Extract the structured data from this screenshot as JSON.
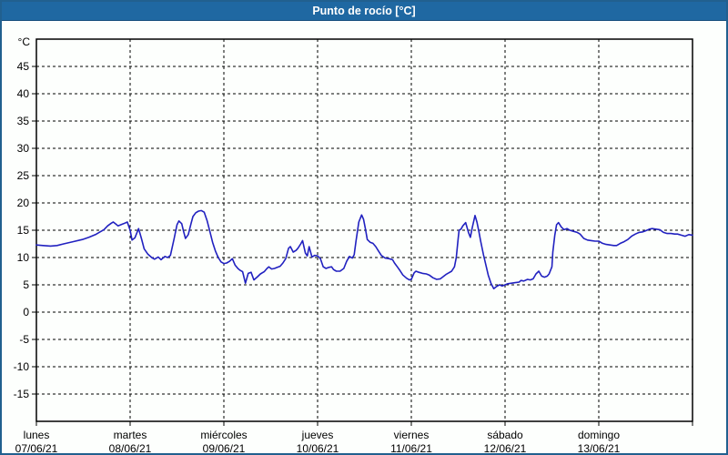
{
  "header": {
    "title": "Punto de rocío [°C]"
  },
  "colors": {
    "header_bg": "#1f68a2",
    "header_text": "#ffffff",
    "page_border": "#21608f",
    "page_bg": "#fdfffd",
    "plot_border": "#000000",
    "grid": "#000000",
    "axis_text": "#000000",
    "line": "#2121c0"
  },
  "chart_data": {
    "type": "line",
    "title": "Punto de rocío [°C]",
    "y_unit": "°C",
    "ylim": [
      -20,
      50
    ],
    "y_ticks": [
      45,
      40,
      35,
      30,
      25,
      20,
      15,
      10,
      5,
      0,
      -5,
      -10,
      -15
    ],
    "grid": "dashed",
    "legend": "none",
    "x_days": [
      {
        "name": "lunes",
        "date": "07/06/21"
      },
      {
        "name": "martes",
        "date": "08/06/21"
      },
      {
        "name": "miércoles",
        "date": "09/06/21"
      },
      {
        "name": "jueves",
        "date": "10/06/21"
      },
      {
        "name": "viernes",
        "date": "11/06/21"
      },
      {
        "name": "sábado",
        "date": "12/06/21"
      },
      {
        "name": "domingo",
        "date": "13/06/21"
      }
    ],
    "xlim_days": [
      0,
      7
    ],
    "series": [
      {
        "name": "Punto de rocío",
        "color": "#2121c0",
        "points": [
          [
            0.0,
            12.3
          ],
          [
            0.07,
            12.2
          ],
          [
            0.15,
            12.1
          ],
          [
            0.22,
            12.2
          ],
          [
            0.29,
            12.5
          ],
          [
            0.39,
            12.9
          ],
          [
            0.49,
            13.3
          ],
          [
            0.56,
            13.7
          ],
          [
            0.63,
            14.2
          ],
          [
            0.68,
            14.7
          ],
          [
            0.72,
            15.1
          ],
          [
            0.76,
            15.8
          ],
          [
            0.8,
            16.3
          ],
          [
            0.82,
            16.5
          ],
          [
            0.85,
            16.1
          ],
          [
            0.87,
            15.8
          ],
          [
            0.9,
            16.0
          ],
          [
            0.93,
            16.2
          ],
          [
            0.97,
            16.5
          ],
          [
            1.0,
            15.0
          ],
          [
            1.02,
            13.2
          ],
          [
            1.05,
            13.6
          ],
          [
            1.09,
            15.3
          ],
          [
            1.12,
            13.5
          ],
          [
            1.15,
            11.6
          ],
          [
            1.19,
            10.6
          ],
          [
            1.23,
            10.0
          ],
          [
            1.26,
            9.7
          ],
          [
            1.3,
            10.1
          ],
          [
            1.33,
            9.6
          ],
          [
            1.37,
            10.2
          ],
          [
            1.4,
            10.0
          ],
          [
            1.43,
            10.4
          ],
          [
            1.47,
            13.5
          ],
          [
            1.5,
            16.0
          ],
          [
            1.52,
            16.7
          ],
          [
            1.55,
            16.2
          ],
          [
            1.57,
            14.8
          ],
          [
            1.59,
            13.5
          ],
          [
            1.62,
            14.2
          ],
          [
            1.65,
            16.2
          ],
          [
            1.67,
            17.5
          ],
          [
            1.7,
            18.2
          ],
          [
            1.73,
            18.5
          ],
          [
            1.76,
            18.6
          ],
          [
            1.79,
            18.3
          ],
          [
            1.82,
            16.8
          ],
          [
            1.85,
            14.8
          ],
          [
            1.88,
            12.8
          ],
          [
            1.91,
            11.2
          ],
          [
            1.94,
            10.0
          ],
          [
            1.97,
            9.2
          ],
          [
            2.0,
            8.9
          ],
          [
            2.03,
            9.0
          ],
          [
            2.06,
            9.3
          ],
          [
            2.09,
            9.8
          ],
          [
            2.12,
            8.6
          ],
          [
            2.15,
            8.0
          ],
          [
            2.17,
            7.7
          ],
          [
            2.2,
            7.4
          ],
          [
            2.23,
            5.3
          ],
          [
            2.26,
            7.1
          ],
          [
            2.29,
            7.3
          ],
          [
            2.32,
            5.9
          ],
          [
            2.36,
            6.5
          ],
          [
            2.39,
            7.0
          ],
          [
            2.43,
            7.4
          ],
          [
            2.46,
            8.0
          ],
          [
            2.48,
            8.3
          ],
          [
            2.51,
            7.9
          ],
          [
            2.54,
            8.0
          ],
          [
            2.57,
            8.2
          ],
          [
            2.6,
            8.4
          ],
          [
            2.63,
            9.0
          ],
          [
            2.66,
            9.8
          ],
          [
            2.69,
            11.7
          ],
          [
            2.71,
            12.0
          ],
          [
            2.74,
            11.0
          ],
          [
            2.77,
            11.3
          ],
          [
            2.79,
            11.7
          ],
          [
            2.82,
            12.5
          ],
          [
            2.84,
            13.1
          ],
          [
            2.87,
            10.8
          ],
          [
            2.89,
            10.3
          ],
          [
            2.91,
            12.0
          ],
          [
            2.94,
            10.1
          ],
          [
            2.97,
            10.4
          ],
          [
            3.0,
            10.3
          ],
          [
            3.03,
            9.8
          ],
          [
            3.06,
            8.3
          ],
          [
            3.09,
            8.0
          ],
          [
            3.12,
            8.2
          ],
          [
            3.15,
            8.3
          ],
          [
            3.17,
            7.8
          ],
          [
            3.2,
            7.5
          ],
          [
            3.24,
            7.5
          ],
          [
            3.28,
            8.0
          ],
          [
            3.31,
            9.3
          ],
          [
            3.34,
            10.2
          ],
          [
            3.37,
            9.9
          ],
          [
            3.39,
            10.5
          ],
          [
            3.41,
            13.0
          ],
          [
            3.44,
            16.5
          ],
          [
            3.47,
            17.8
          ],
          [
            3.49,
            17.0
          ],
          [
            3.51,
            15.3
          ],
          [
            3.53,
            13.3
          ],
          [
            3.56,
            12.8
          ],
          [
            3.59,
            12.6
          ],
          [
            3.62,
            12.0
          ],
          [
            3.65,
            11.2
          ],
          [
            3.68,
            10.4
          ],
          [
            3.72,
            9.9
          ],
          [
            3.76,
            9.8
          ],
          [
            3.8,
            9.6
          ],
          [
            3.82,
            9.0
          ],
          [
            3.85,
            8.3
          ],
          [
            3.88,
            7.6
          ],
          [
            3.91,
            6.8
          ],
          [
            3.95,
            6.2
          ],
          [
            3.98,
            5.9
          ],
          [
            4.0,
            6.0
          ],
          [
            4.03,
            7.2
          ],
          [
            4.05,
            7.5
          ],
          [
            4.08,
            7.3
          ],
          [
            4.12,
            7.1
          ],
          [
            4.16,
            7.0
          ],
          [
            4.19,
            6.8
          ],
          [
            4.23,
            6.3
          ],
          [
            4.27,
            6.0
          ],
          [
            4.31,
            6.1
          ],
          [
            4.34,
            6.5
          ],
          [
            4.37,
            6.9
          ],
          [
            4.4,
            7.2
          ],
          [
            4.43,
            7.5
          ],
          [
            4.46,
            8.3
          ],
          [
            4.48,
            10.0
          ],
          [
            4.5,
            13.5
          ],
          [
            4.51,
            15.0
          ],
          [
            4.53,
            15.2
          ],
          [
            4.55,
            15.8
          ],
          [
            4.58,
            16.4
          ],
          [
            4.61,
            14.6
          ],
          [
            4.63,
            13.7
          ],
          [
            4.65,
            15.5
          ],
          [
            4.68,
            17.7
          ],
          [
            4.7,
            16.5
          ],
          [
            4.72,
            14.8
          ],
          [
            4.74,
            13.0
          ],
          [
            4.77,
            10.5
          ],
          [
            4.8,
            8.3
          ],
          [
            4.82,
            6.8
          ],
          [
            4.85,
            5.3
          ],
          [
            4.88,
            4.3
          ],
          [
            4.91,
            4.7
          ],
          [
            4.94,
            5.0
          ],
          [
            4.97,
            4.8
          ],
          [
            5.0,
            5.0
          ],
          [
            5.03,
            5.2
          ],
          [
            5.07,
            5.3
          ],
          [
            5.11,
            5.4
          ],
          [
            5.15,
            5.5
          ],
          [
            5.17,
            5.8
          ],
          [
            5.2,
            5.7
          ],
          [
            5.24,
            6.0
          ],
          [
            5.27,
            5.9
          ],
          [
            5.3,
            6.1
          ],
          [
            5.33,
            7.0
          ],
          [
            5.36,
            7.5
          ],
          [
            5.39,
            6.6
          ],
          [
            5.42,
            6.4
          ],
          [
            5.45,
            6.6
          ],
          [
            5.47,
            7.0
          ],
          [
            5.5,
            8.3
          ],
          [
            5.51,
            11.0
          ],
          [
            5.53,
            14.0
          ],
          [
            5.55,
            16.0
          ],
          [
            5.57,
            16.4
          ],
          [
            5.6,
            15.6
          ],
          [
            5.63,
            15.1
          ],
          [
            5.66,
            15.3
          ],
          [
            5.69,
            15.0
          ],
          [
            5.73,
            14.8
          ],
          [
            5.77,
            14.6
          ],
          [
            5.8,
            14.3
          ],
          [
            5.84,
            13.5
          ],
          [
            5.88,
            13.2
          ],
          [
            5.92,
            13.1
          ],
          [
            5.96,
            13.0
          ],
          [
            6.0,
            13.0
          ],
          [
            6.04,
            12.6
          ],
          [
            6.08,
            12.4
          ],
          [
            6.12,
            12.3
          ],
          [
            6.16,
            12.2
          ],
          [
            6.19,
            12.2
          ],
          [
            6.23,
            12.6
          ],
          [
            6.27,
            12.9
          ],
          [
            6.31,
            13.3
          ],
          [
            6.35,
            13.9
          ],
          [
            6.39,
            14.3
          ],
          [
            6.43,
            14.6
          ],
          [
            6.47,
            14.7
          ],
          [
            6.5,
            14.9
          ],
          [
            6.54,
            15.2
          ],
          [
            6.57,
            15.3
          ],
          [
            6.61,
            15.2
          ],
          [
            6.65,
            15.1
          ],
          [
            6.69,
            14.6
          ],
          [
            6.73,
            14.4
          ],
          [
            6.77,
            14.4
          ],
          [
            6.81,
            14.3
          ],
          [
            6.84,
            14.3
          ],
          [
            6.88,
            14.1
          ],
          [
            6.92,
            13.9
          ],
          [
            6.96,
            14.2
          ],
          [
            7.0,
            14.1
          ]
        ]
      }
    ]
  }
}
